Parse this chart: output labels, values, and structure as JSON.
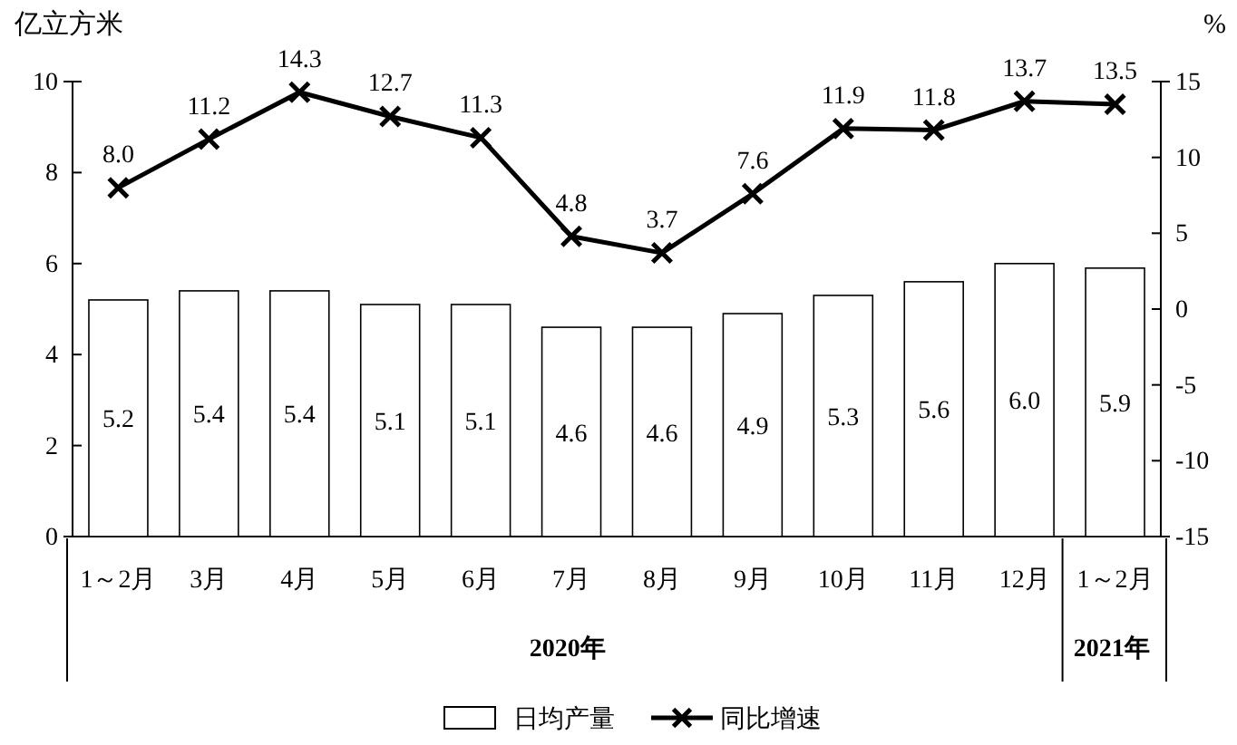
{
  "chart_data": {
    "type": "bar",
    "ylabel": "亿立方米",
    "y2label": "%",
    "categories": [
      "1～2月",
      "3月",
      "4月",
      "5月",
      "6月",
      "7月",
      "8月",
      "9月",
      "10月",
      "11月",
      "12月",
      "1～2月"
    ],
    "series": [
      {
        "name": "日均产量",
        "color": "#ffffff",
        "values": [
          5.2,
          5.4,
          5.4,
          5.1,
          5.1,
          4.6,
          4.6,
          4.9,
          5.3,
          5.6,
          6.0,
          5.9
        ],
        "value_labels": [
          "5.2",
          "5.4",
          "5.4",
          "5.1",
          "5.1",
          "4.6",
          "4.6",
          "4.9",
          "5.3",
          "5.6",
          "6.0",
          "5.9"
        ]
      },
      {
        "name": "同比增速",
        "type": "line",
        "axis": "y2",
        "color": "#000000",
        "values": [
          8.0,
          11.2,
          14.3,
          12.7,
          11.3,
          4.8,
          3.7,
          7.6,
          11.9,
          11.8,
          13.7,
          13.5
        ],
        "value_labels": [
          "8.0",
          "11.2",
          "14.3",
          "12.7",
          "11.3",
          "4.8",
          "3.7",
          "7.6",
          "11.9",
          "11.8",
          "13.7",
          "13.5"
        ]
      }
    ],
    "ylim": [
      0,
      10
    ],
    "yticks": [
      0,
      2,
      4,
      6,
      8,
      10
    ],
    "y2lim": [
      -15,
      15
    ],
    "y2ticks": [
      -15,
      -10,
      -5,
      0,
      5,
      10,
      15
    ],
    "marker": "cross",
    "line_style": "solid",
    "grid": false,
    "legend": "bottom",
    "annotations": [
      "2020年",
      "2021年"
    ]
  }
}
